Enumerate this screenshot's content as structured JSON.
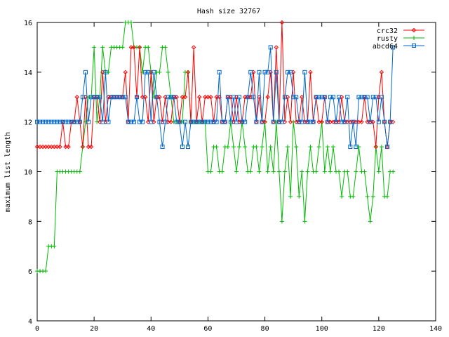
{
  "chart_data": {
    "type": "line",
    "title": "Hash size 32767",
    "xlabel": "",
    "ylabel": "maximum list length",
    "xlim": [
      0,
      140
    ],
    "ylim": [
      4,
      16
    ],
    "xticks": [
      0,
      20,
      40,
      60,
      80,
      100,
      120,
      140
    ],
    "yticks": [
      4,
      6,
      8,
      10,
      12,
      14,
      16
    ],
    "grid": false,
    "legend_position": "top-right",
    "series": [
      {
        "name": "crc32",
        "color": "#ff0000",
        "marker": "diamond",
        "x": [
          0,
          1,
          2,
          3,
          4,
          5,
          6,
          7,
          8,
          9,
          10,
          11,
          12,
          13,
          14,
          15,
          16,
          17,
          18,
          19,
          20,
          21,
          22,
          23,
          24,
          25,
          26,
          27,
          28,
          29,
          30,
          31,
          32,
          33,
          34,
          35,
          36,
          37,
          38,
          39,
          40,
          41,
          42,
          43,
          44,
          45,
          46,
          47,
          48,
          49,
          50,
          51,
          52,
          53,
          54,
          55,
          56,
          57,
          58,
          59,
          60,
          61,
          62,
          63,
          64,
          65,
          66,
          67,
          68,
          69,
          70,
          71,
          72,
          73,
          74,
          75,
          76,
          77,
          78,
          79,
          80,
          81,
          82,
          83,
          84,
          85,
          86,
          87,
          88,
          89,
          90,
          91,
          92,
          93,
          94,
          95,
          96,
          97,
          98,
          99,
          100,
          101,
          102,
          103,
          104,
          105,
          106,
          107,
          108,
          109,
          110,
          111,
          112,
          113,
          114,
          115,
          116,
          117,
          118,
          119,
          120,
          121,
          122,
          123,
          124,
          125
        ],
        "values": [
          11,
          11,
          11,
          11,
          11,
          11,
          11,
          11,
          11,
          12,
          11,
          11,
          12,
          12,
          13,
          12,
          11,
          13,
          11,
          11,
          13,
          13,
          12,
          14,
          12,
          13,
          13,
          13,
          13,
          13,
          13,
          14,
          12,
          15,
          15,
          13,
          15,
          13,
          13,
          12,
          14,
          12,
          13,
          13,
          12,
          13,
          12,
          12,
          13,
          13,
          12,
          13,
          13,
          14,
          12,
          15,
          12,
          13,
          12,
          13,
          13,
          13,
          12,
          13,
          13,
          12,
          12,
          13,
          13,
          12,
          13,
          12,
          12,
          13,
          13,
          13,
          14,
          12,
          13,
          12,
          12,
          13,
          14,
          12,
          15,
          12,
          16,
          12,
          13,
          12,
          14,
          12,
          12,
          13,
          12,
          12,
          14,
          12,
          13,
          12,
          12,
          13,
          12,
          12,
          12,
          12,
          12,
          13,
          12,
          12,
          12,
          12,
          12,
          12,
          12,
          13,
          12,
          12,
          12,
          11,
          13,
          14,
          12,
          11,
          12,
          12
        ]
      },
      {
        "name": "rusty",
        "color": "#00bb00",
        "marker": "plus",
        "x": [
          0,
          1,
          2,
          3,
          4,
          5,
          6,
          7,
          8,
          9,
          10,
          11,
          12,
          13,
          14,
          15,
          16,
          17,
          18,
          19,
          20,
          21,
          22,
          23,
          24,
          25,
          26,
          27,
          28,
          29,
          30,
          31,
          32,
          33,
          34,
          35,
          36,
          37,
          38,
          39,
          40,
          41,
          42,
          43,
          44,
          45,
          46,
          47,
          48,
          49,
          50,
          51,
          52,
          53,
          54,
          55,
          56,
          57,
          58,
          59,
          60,
          61,
          62,
          63,
          64,
          65,
          66,
          67,
          68,
          69,
          70,
          71,
          72,
          73,
          74,
          75,
          76,
          77,
          78,
          79,
          80,
          81,
          82,
          83,
          84,
          85,
          86,
          87,
          88,
          89,
          90,
          91,
          92,
          93,
          94,
          95,
          96,
          97,
          98,
          99,
          100,
          101,
          102,
          103,
          104,
          105,
          106,
          107,
          108,
          109,
          110,
          111,
          112,
          113,
          114,
          115,
          116,
          117,
          118,
          119,
          120,
          121,
          122,
          123,
          124,
          125
        ],
        "values": [
          6,
          6,
          6,
          6,
          7,
          7,
          7,
          10,
          10,
          10,
          10,
          10,
          10,
          10,
          10,
          10,
          11,
          12,
          13,
          13,
          15,
          12,
          13,
          15,
          14,
          14,
          15,
          15,
          15,
          15,
          15,
          16,
          16,
          16,
          15,
          15,
          15,
          14,
          15,
          15,
          14,
          13,
          14,
          14,
          15,
          15,
          14,
          13,
          12,
          12,
          12,
          12,
          14,
          14,
          12,
          12,
          12,
          12,
          12,
          12,
          10,
          10,
          11,
          11,
          10,
          10,
          11,
          11,
          12,
          11,
          10,
          11,
          12,
          11,
          10,
          10,
          11,
          11,
          10,
          11,
          12,
          10,
          11,
          10,
          12,
          10,
          8,
          10,
          11,
          9,
          12,
          11,
          9,
          10,
          8,
          10,
          11,
          10,
          10,
          11,
          12,
          10,
          11,
          10,
          11,
          10,
          10,
          9,
          10,
          10,
          9,
          9,
          10,
          11,
          10,
          10,
          9,
          8,
          9,
          11,
          10,
          11,
          9,
          9,
          10,
          10
        ]
      },
      {
        "name": "abcd64",
        "color": "#0066cc",
        "marker": "square",
        "x": [
          0,
          1,
          2,
          3,
          4,
          5,
          6,
          7,
          8,
          9,
          10,
          11,
          12,
          13,
          14,
          15,
          16,
          17,
          18,
          19,
          20,
          21,
          22,
          23,
          24,
          25,
          26,
          27,
          28,
          29,
          30,
          31,
          32,
          33,
          34,
          35,
          36,
          37,
          38,
          39,
          40,
          41,
          42,
          43,
          44,
          45,
          46,
          47,
          48,
          49,
          50,
          51,
          52,
          53,
          54,
          55,
          56,
          57,
          58,
          59,
          60,
          61,
          62,
          63,
          64,
          65,
          66,
          67,
          68,
          69,
          70,
          71,
          72,
          73,
          74,
          75,
          76,
          77,
          78,
          79,
          80,
          81,
          82,
          83,
          84,
          85,
          86,
          87,
          88,
          89,
          90,
          91,
          92,
          93,
          94,
          95,
          96,
          97,
          98,
          99,
          100,
          101,
          102,
          103,
          104,
          105,
          106,
          107,
          108,
          109,
          110,
          111,
          112,
          113,
          114,
          115,
          116,
          117,
          118,
          119,
          120,
          121,
          122,
          123,
          124,
          125
        ],
        "values": [
          12,
          12,
          12,
          12,
          12,
          12,
          12,
          12,
          12,
          12,
          12,
          12,
          12,
          12,
          12,
          12,
          13,
          14,
          12,
          13,
          13,
          13,
          13,
          12,
          14,
          12,
          13,
          13,
          13,
          13,
          13,
          13,
          12,
          12,
          12,
          13,
          12,
          12,
          14,
          14,
          12,
          14,
          13,
          12,
          11,
          12,
          13,
          13,
          13,
          12,
          12,
          11,
          12,
          11,
          12,
          12,
          12,
          12,
          12,
          12,
          12,
          12,
          12,
          12,
          14,
          12,
          12,
          13,
          12,
          13,
          12,
          13,
          12,
          12,
          13,
          14,
          13,
          12,
          14,
          12,
          14,
          14,
          15,
          12,
          14,
          12,
          12,
          13,
          14,
          14,
          13,
          13,
          12,
          12,
          14,
          12,
          12,
          12,
          13,
          13,
          13,
          13,
          12,
          13,
          13,
          12,
          13,
          12,
          12,
          13,
          11,
          12,
          11,
          13,
          13,
          13,
          13,
          12,
          13,
          13,
          12,
          13,
          12,
          11,
          12,
          15
        ]
      }
    ]
  }
}
